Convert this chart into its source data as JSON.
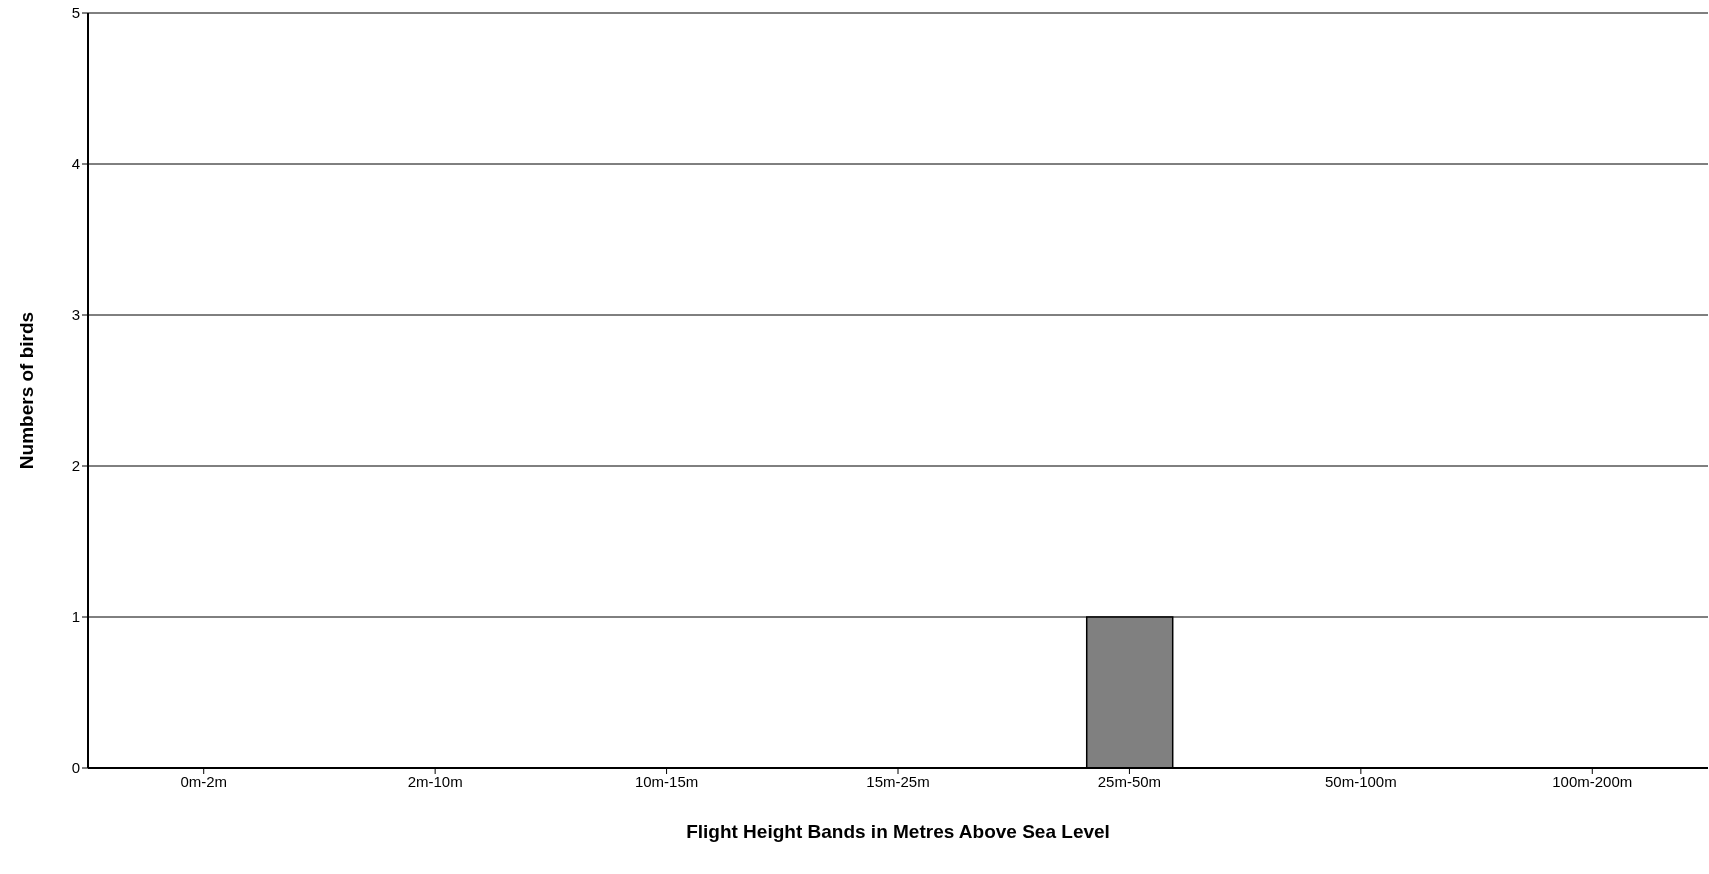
{
  "chart_data": {
    "type": "bar",
    "xlabel": "Flight Height Bands in Metres Above Sea Level",
    "ylabel": "Numbers of birds",
    "categories": [
      "0m-2m",
      "2m-10m",
      "10m-15m",
      "15m-25m",
      "25m-50m",
      "50m-100m",
      "100m-200m"
    ],
    "values": [
      0,
      0,
      0,
      0,
      1,
      0,
      0
    ],
    "color": "#808080",
    "ylim": [
      0,
      5
    ],
    "yticks": [
      0,
      1,
      2,
      3,
      4,
      5
    ],
    "grid": "y"
  }
}
